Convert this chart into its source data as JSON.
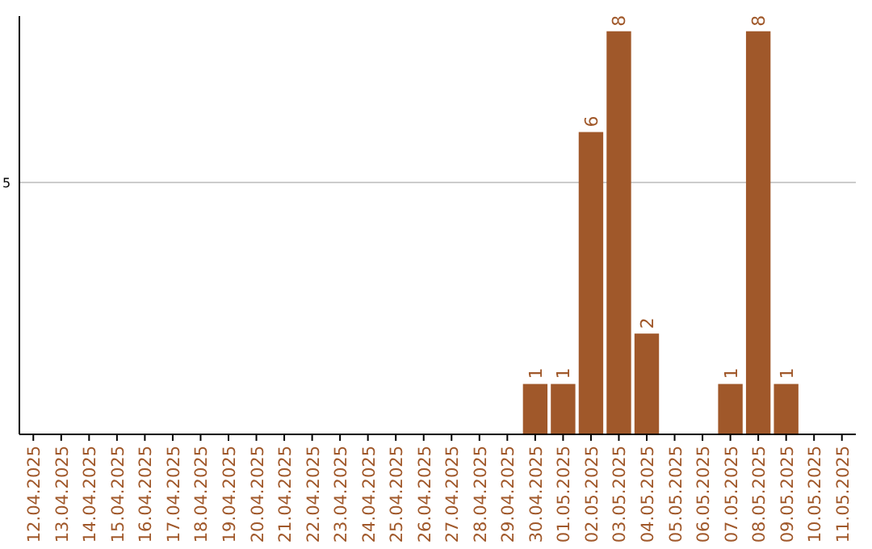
{
  "chart_data": {
    "type": "bar",
    "ylim": [
      0,
      8.3
    ],
    "categories": [
      "12.04.2025",
      "13.04.2025",
      "14.04.2025",
      "15.04.2025",
      "16.04.2025",
      "17.04.2025",
      "18.04.2025",
      "19.04.2025",
      "20.04.2025",
      "21.04.2025",
      "22.04.2025",
      "23.04.2025",
      "24.04.2025",
      "25.04.2025",
      "26.04.2025",
      "27.04.2025",
      "28.04.2025",
      "29.04.2025",
      "30.04.2025",
      "01.05.2025",
      "02.05.2025",
      "03.05.2025",
      "04.05.2025",
      "05.05.2025",
      "06.05.2025",
      "07.05.2025",
      "08.05.2025",
      "09.05.2025",
      "10.05.2025",
      "11.05.2025"
    ],
    "values": [
      null,
      null,
      null,
      null,
      null,
      null,
      null,
      null,
      null,
      null,
      null,
      null,
      null,
      null,
      null,
      null,
      null,
      null,
      1,
      1,
      6,
      8,
      2,
      null,
      null,
      1,
      8,
      1,
      null,
      null
    ],
    "value_labels": [
      null,
      null,
      null,
      null,
      null,
      null,
      null,
      null,
      null,
      null,
      null,
      null,
      null,
      null,
      null,
      null,
      null,
      null,
      "1",
      "1",
      "6",
      "8",
      "2",
      null,
      null,
      "1",
      "8",
      "1",
      null,
      null
    ],
    "color": "#a0582a",
    "yticks": [
      5
    ],
    "grid": "y"
  }
}
